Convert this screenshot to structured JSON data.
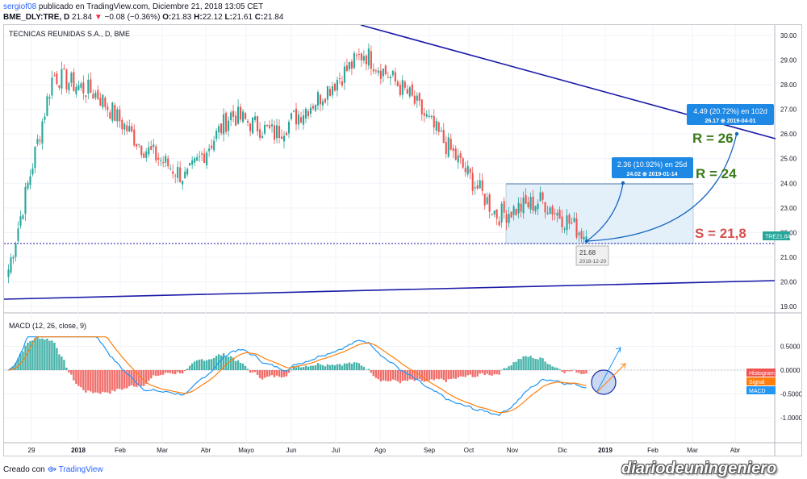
{
  "header": {
    "author": "sergiof08",
    "published_text": "publicado en TradingView.com, Diciembre 21, 2018 13:05 CET",
    "symbol_line": "BME_DLY:TRE, D",
    "last": "21.84",
    "change_arrow": "▼",
    "change": "−0.08 (−0.36%)",
    "o_label": "O:",
    "o_value": "21.83",
    "h_label": "H:",
    "h_value": "22.12",
    "l_label": "L:",
    "l_value": "21.61",
    "c_label": "C:",
    "c_value": "21.84"
  },
  "chart_title": "TECNICAS REUNIDAS S.A., D, BME",
  "price_tag": {
    "symbol": "TRE",
    "value": "21.84"
  },
  "annotations": {
    "r26_label": "R = 26",
    "r24_label": "R = 24",
    "s_label": "S = 21,8",
    "proj1_line1": "2.36 (10.92%) en 25d",
    "proj1_line2": "24.02 ⊕ 2019-01-14",
    "proj2_line1": "4.49 (20.72%) en 102d",
    "proj2_line2": "26.17 ⊕ 2019-04-01",
    "low_value": "21.68",
    "low_date": "2018-12-20"
  },
  "macd": {
    "title": "MACD (12, 26, close, 9)",
    "legend": [
      {
        "label": "Histogram",
        "color": "#ef5350"
      },
      {
        "label": "Signal",
        "color": "#ff7f0e"
      },
      {
        "label": "MACD",
        "color": "#2196f3"
      }
    ]
  },
  "footer": {
    "created_with": "Creado con",
    "brand": "TradingView"
  },
  "watermark": "diariodeuningeniero",
  "colors": {
    "up": "#26a69a",
    "down": "#ef5350",
    "trendline": "#1a1aa8",
    "support": "#1a1aa8",
    "r_label": "#3a7a1a",
    "s_label": "#d45050",
    "projection": "#1565c0",
    "box_fill": "#e3f0fa",
    "macd": "#2196f3",
    "signal": "#ff7f0e"
  },
  "chart_data": {
    "type": "candlestick",
    "title": "TECNICAS REUNIDAS S.A., D, BME",
    "x_ticks": [
      "29",
      "2018",
      "Feb",
      "Mar",
      "Abr",
      "Mayo",
      "Jun",
      "Jul",
      "Ago",
      "Sep",
      "Oct",
      "Nov",
      "Dic",
      "2019",
      "Feb",
      "Mar",
      "Abr"
    ],
    "price_ticks": [
      "30.00",
      "29.00",
      "28.00",
      "27.00",
      "26.00",
      "25.00",
      "24.00",
      "23.00",
      "22.00",
      "21.00",
      "20.00",
      "19.00"
    ],
    "macd_ticks": [
      "0.5000",
      "0.0000",
      "-0.5000",
      "-1.0000"
    ],
    "price_ylim": [
      18.6,
      30.3
    ],
    "macd_ylim": [
      -1.3,
      0.75
    ],
    "approx_close_path": [
      {
        "period": "29",
        "close": 20.5
      },
      {
        "period": "2018",
        "close": 28.4
      },
      {
        "period": "Feb",
        "close": 27.6
      },
      {
        "period": "Mar",
        "close": 25.5
      },
      {
        "period": "Abr",
        "close": 24.2
      },
      {
        "period": "Mayo",
        "close": 26.8
      },
      {
        "period": "Jun",
        "close": 26.0
      },
      {
        "period": "Jul",
        "close": 27.5
      },
      {
        "period": "Ago",
        "close": 29.3
      },
      {
        "period": "Sep",
        "close": 27.6
      },
      {
        "period": "Oct",
        "close": 25.2
      },
      {
        "period": "Nov",
        "close": 22.7
      },
      {
        "period": "Dic",
        "close": 23.3
      },
      {
        "period": "2019",
        "close": 21.84
      }
    ],
    "support_level": 21.8,
    "resistance_levels": [
      24,
      26
    ]
  }
}
